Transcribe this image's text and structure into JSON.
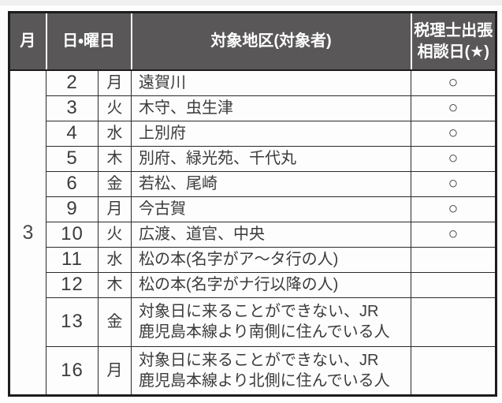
{
  "table": {
    "header": {
      "month": "月",
      "day_weekday": "日・曜日",
      "target_area": "対象地区(対象者)",
      "tax_consultation": "税理士出張\n相談日(★)"
    },
    "month_value": "3",
    "circle_mark": "○",
    "rows": [
      {
        "day": "2",
        "weekday": "月",
        "area": "遠賀川",
        "tax": "○"
      },
      {
        "day": "3",
        "weekday": "火",
        "area": "木守、虫生津",
        "tax": "○"
      },
      {
        "day": "4",
        "weekday": "水",
        "area": "上別府",
        "tax": "○"
      },
      {
        "day": "5",
        "weekday": "木",
        "area": "別府、緑光苑、千代丸",
        "tax": "○"
      },
      {
        "day": "6",
        "weekday": "金",
        "area": "若松、尾崎",
        "tax": "○"
      },
      {
        "day": "9",
        "weekday": "月",
        "area": "今古賀",
        "tax": "○"
      },
      {
        "day": "10",
        "weekday": "火",
        "area": "広渡、道官、中央",
        "tax": "○"
      },
      {
        "day": "11",
        "weekday": "水",
        "area": "松の本(名字がア〜タ行の人)",
        "tax": ""
      },
      {
        "day": "12",
        "weekday": "木",
        "area": "松の本(名字がナ行以降の人)",
        "tax": ""
      },
      {
        "day": "13",
        "weekday": "金",
        "area": "対象日に来ることができない、JR\n鹿児島本線より南側に住んでいる人",
        "tax": ""
      },
      {
        "day": "16",
        "weekday": "月",
        "area": "対象日に来ることができない、JR\n鹿児島本線より北側に住んでいる人",
        "tax": ""
      }
    ],
    "colors": {
      "header_bg": "#595757",
      "header_text": "#ffffff",
      "border": "#1c1c1c",
      "body_text": "#3d3b3b"
    }
  }
}
